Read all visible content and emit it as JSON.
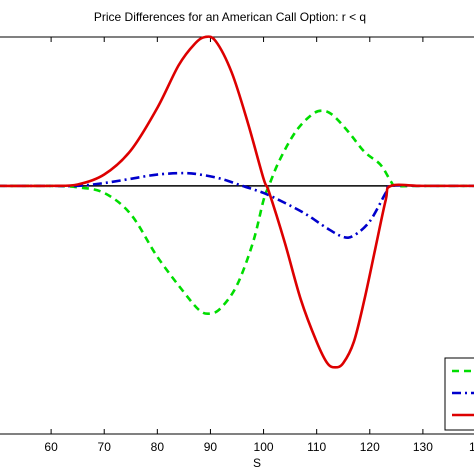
{
  "chart_data": {
    "type": "line",
    "title": "Price Differences for an American Call Option: r < q",
    "xlabel": "S",
    "ylabel": "",
    "xlim": [
      50,
      140
    ],
    "x_ticks": [
      60,
      70,
      80,
      90,
      100,
      110,
      120,
      130
    ],
    "x_tick_labels": [
      "60",
      "70",
      "80",
      "90",
      "100",
      "110",
      "120",
      "130"
    ],
    "x_tick_partial_right": "1",
    "grid": false,
    "legend_position": "bottom-right",
    "ylim": [
      -1.75,
      1.05
    ],
    "reference_line_y": 0,
    "series": [
      {
        "style": "dashed",
        "color": "#00dd00",
        "points": [
          [
            50,
            0
          ],
          [
            60,
            0
          ],
          [
            65,
            -0.01
          ],
          [
            70,
            -0.05
          ],
          [
            75,
            -0.2
          ],
          [
            80,
            -0.5
          ],
          [
            85,
            -0.75
          ],
          [
            88,
            -0.88
          ],
          [
            90,
            -0.9
          ],
          [
            92,
            -0.86
          ],
          [
            95,
            -0.7
          ],
          [
            98,
            -0.4
          ],
          [
            100,
            -0.1
          ],
          [
            101,
            0
          ],
          [
            103,
            0.18
          ],
          [
            106,
            0.38
          ],
          [
            109,
            0.5
          ],
          [
            111,
            0.53
          ],
          [
            113,
            0.5
          ],
          [
            116,
            0.38
          ],
          [
            119,
            0.24
          ],
          [
            122,
            0.15
          ],
          [
            124,
            0.03
          ],
          [
            125,
            0
          ],
          [
            130,
            0
          ],
          [
            140,
            0
          ]
        ]
      },
      {
        "style": "dashdot",
        "color": "#0000cc",
        "points": [
          [
            50,
            0
          ],
          [
            60,
            0
          ],
          [
            65,
            0
          ],
          [
            70,
            0.02
          ],
          [
            75,
            0.05
          ],
          [
            80,
            0.08
          ],
          [
            85,
            0.09
          ],
          [
            88,
            0.08
          ],
          [
            92,
            0.05
          ],
          [
            96,
            0
          ],
          [
            100,
            -0.05
          ],
          [
            104,
            -0.12
          ],
          [
            108,
            -0.2
          ],
          [
            112,
            -0.3
          ],
          [
            115,
            -0.36
          ],
          [
            117,
            -0.35
          ],
          [
            120,
            -0.25
          ],
          [
            123,
            -0.05
          ],
          [
            124,
            0
          ],
          [
            130,
            0
          ],
          [
            140,
            0
          ]
        ]
      },
      {
        "style": "solid",
        "color": "#dd0000",
        "points": [
          [
            50,
            0
          ],
          [
            60,
            0
          ],
          [
            65,
            0.01
          ],
          [
            70,
            0.08
          ],
          [
            75,
            0.25
          ],
          [
            80,
            0.55
          ],
          [
            84,
            0.85
          ],
          [
            87,
            1.0
          ],
          [
            89,
            1.05
          ],
          [
            91,
            1.02
          ],
          [
            94,
            0.8
          ],
          [
            97,
            0.45
          ],
          [
            100,
            0.05
          ],
          [
            101,
            -0.04
          ],
          [
            104,
            -0.4
          ],
          [
            107,
            -0.8
          ],
          [
            110,
            -1.1
          ],
          [
            112,
            -1.25
          ],
          [
            113.5,
            -1.28
          ],
          [
            115,
            -1.25
          ],
          [
            117,
            -1.1
          ],
          [
            119,
            -0.8
          ],
          [
            121,
            -0.45
          ],
          [
            123,
            -0.1
          ],
          [
            124,
            0
          ],
          [
            130,
            0
          ],
          [
            140,
            0
          ]
        ]
      }
    ]
  }
}
